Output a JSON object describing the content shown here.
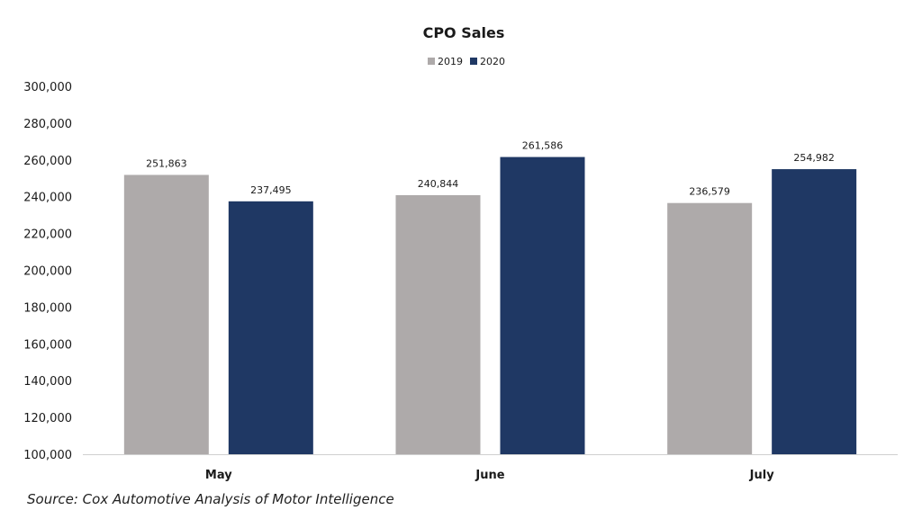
{
  "chart_data": {
    "type": "bar",
    "title": "CPO Sales",
    "xlabel": "",
    "ylabel": "",
    "categories": [
      "May",
      "June",
      "July"
    ],
    "series": [
      {
        "name": "2019",
        "color": "#aeaaaa",
        "values": [
          251863,
          240844,
          236579
        ],
        "labels": [
          "251,863",
          "240,844",
          "236,579"
        ]
      },
      {
        "name": "2020",
        "color": "#1f3864",
        "values": [
          237495,
          261586,
          254982
        ],
        "labels": [
          "237,495",
          "261,586",
          "254,982"
        ]
      }
    ],
    "ylim": [
      100000,
      300000
    ],
    "yticks": [
      100000,
      120000,
      140000,
      160000,
      180000,
      200000,
      220000,
      240000,
      260000,
      280000,
      300000
    ],
    "ytick_labels": [
      "100,000",
      "120,000",
      "140,000",
      "160,000",
      "180,000",
      "200,000",
      "220,000",
      "240,000",
      "260,000",
      "280,000",
      "300,000"
    ],
    "grid": false,
    "legend_position": "top-center"
  },
  "source_text": "Source: Cox Automotive Analysis of Motor Intelligence"
}
